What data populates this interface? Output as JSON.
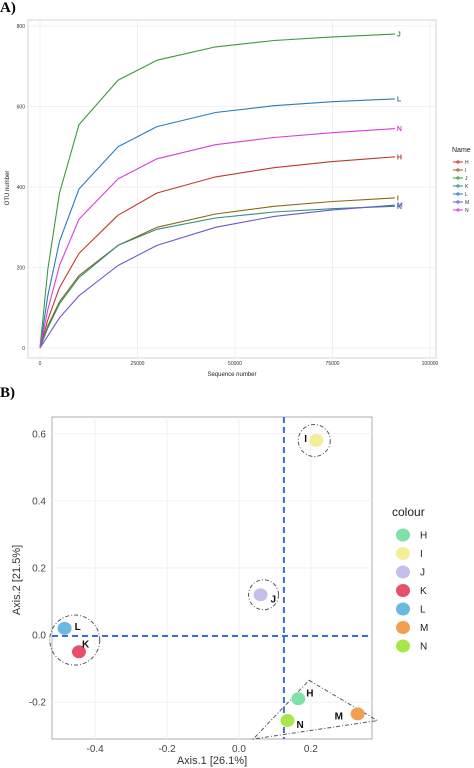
{
  "chart_data": [
    {
      "panel_label": "A)",
      "type": "line",
      "xlabel": "Sequence number",
      "ylabel": "OTU number",
      "xlim": [
        0,
        100000
      ],
      "ylim": [
        0,
        800
      ],
      "x_ticks": [
        "0",
        "25000",
        "50000",
        "75000",
        "100000"
      ],
      "y_ticks": [
        "0",
        "200",
        "400",
        "600",
        "800"
      ],
      "grid": true,
      "legend_title": "Name",
      "legend_position": "right",
      "series": [
        {
          "name": "H",
          "color": "#c0392b",
          "x": [
            0,
            2000,
            5000,
            10000,
            20000,
            30000,
            45000,
            60000,
            75000,
            91000
          ],
          "y": [
            0,
            70,
            150,
            235,
            330,
            385,
            425,
            448,
            463,
            475
          ]
        },
        {
          "name": "I",
          "color": "#8b6914",
          "x": [
            0,
            2000,
            5000,
            10000,
            20000,
            30000,
            45000,
            60000,
            75000,
            91000
          ],
          "y": [
            0,
            55,
            115,
            180,
            255,
            300,
            333,
            352,
            364,
            373
          ]
        },
        {
          "name": "J",
          "color": "#3a9a3a",
          "x": [
            0,
            2000,
            5000,
            10000,
            20000,
            30000,
            45000,
            60000,
            75000,
            91000
          ],
          "y": [
            0,
            195,
            385,
            555,
            665,
            715,
            748,
            764,
            773,
            780
          ]
        },
        {
          "name": "K",
          "color": "#2f8f7a",
          "x": [
            0,
            2000,
            5000,
            10000,
            20000,
            30000,
            45000,
            60000,
            75000,
            91000
          ],
          "y": [
            0,
            50,
            110,
            175,
            255,
            295,
            323,
            338,
            346,
            352
          ]
        },
        {
          "name": "L",
          "color": "#2b7bb9",
          "x": [
            0,
            2000,
            5000,
            10000,
            20000,
            30000,
            45000,
            60000,
            75000,
            91000
          ],
          "y": [
            0,
            130,
            265,
            395,
            500,
            550,
            585,
            602,
            612,
            619
          ]
        },
        {
          "name": "M",
          "color": "#6a5acd",
          "x": [
            0,
            2000,
            5000,
            10000,
            20000,
            30000,
            45000,
            60000,
            75000,
            91000
          ],
          "y": [
            0,
            30,
            75,
            130,
            205,
            255,
            300,
            327,
            343,
            355
          ]
        },
        {
          "name": "N",
          "color": "#d63fd6",
          "x": [
            0,
            2000,
            5000,
            10000,
            20000,
            30000,
            45000,
            60000,
            75000,
            91000
          ],
          "y": [
            0,
            95,
            205,
            320,
            420,
            470,
            505,
            523,
            535,
            545
          ]
        }
      ]
    },
    {
      "panel_label": "B)",
      "type": "scatter",
      "xlabel": "Axis.1   [26.1%]",
      "ylabel": "Axis.2   [21.5%]",
      "xlim": [
        -0.52,
        0.37
      ],
      "ylim": [
        -0.31,
        0.65
      ],
      "x_ticks": [
        "-0.4",
        "-0.2",
        "0.0",
        "0.2"
      ],
      "y_ticks": [
        "-0.2",
        "0.0",
        "0.2",
        "0.4",
        "0.6"
      ],
      "grid": true,
      "legend_title": "colour",
      "legend_position": "right",
      "reference_lines": {
        "x": 0.125,
        "y": -0.003,
        "color": "#3a6fd8"
      },
      "points": [
        {
          "name": "H",
          "x": 0.165,
          "y": -0.19,
          "color": "#7fe0a8"
        },
        {
          "name": "I",
          "x": 0.215,
          "y": 0.58,
          "color": "#f3ef99"
        },
        {
          "name": "J",
          "x": 0.06,
          "y": 0.12,
          "color": "#c4c0e8"
        },
        {
          "name": "K",
          "x": -0.445,
          "y": -0.05,
          "color": "#e8506a"
        },
        {
          "name": "L",
          "x": -0.485,
          "y": 0.02,
          "color": "#6bb8e0"
        },
        {
          "name": "M",
          "x": 0.33,
          "y": -0.235,
          "color": "#f0a050"
        },
        {
          "name": "N",
          "x": 0.135,
          "y": -0.255,
          "color": "#a6e84a"
        }
      ]
    }
  ]
}
